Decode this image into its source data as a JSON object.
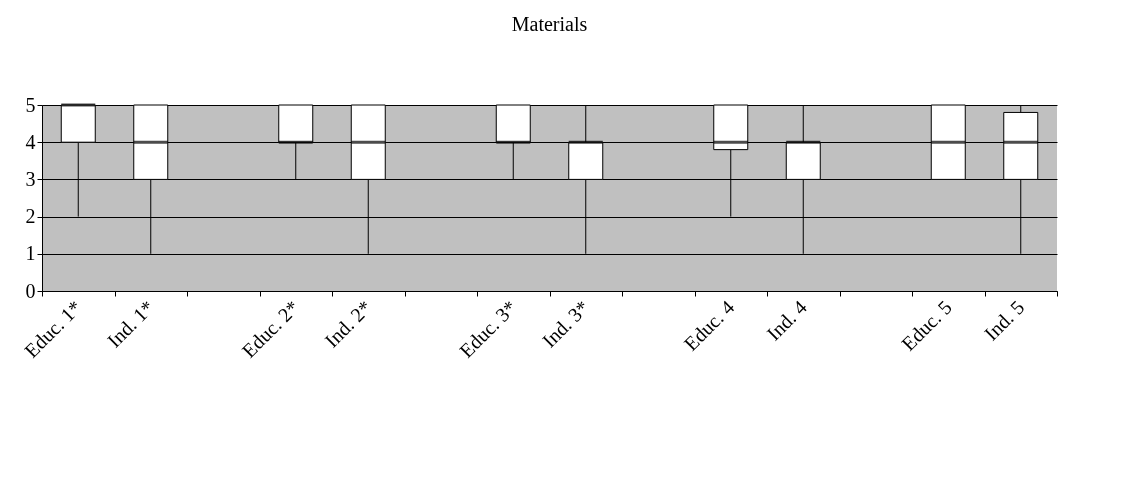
{
  "chart_data": {
    "type": "box",
    "title": "Materials",
    "categories": [
      "Educ. 1*",
      "Ind. 1*",
      null,
      "Educ. 2*",
      "Ind. 2*",
      null,
      "Educ. 3*",
      "Ind. 3*",
      null,
      "Educ. 4",
      "Ind. 4",
      null,
      "Educ. 5",
      "Ind. 5"
    ],
    "boxes": [
      {
        "low": 2,
        "q1": 4,
        "median": 5,
        "q3": 5,
        "high": 5
      },
      {
        "low": 1,
        "q1": 3,
        "median": 4,
        "q3": 5,
        "high": 5
      },
      null,
      {
        "low": 3,
        "q1": 4,
        "median": 4,
        "q3": 5,
        "high": 5
      },
      {
        "low": 1,
        "q1": 3,
        "median": 4,
        "q3": 5,
        "high": 5
      },
      null,
      {
        "low": 3,
        "q1": 4,
        "median": 4,
        "q3": 5,
        "high": 5
      },
      {
        "low": 1,
        "q1": 3,
        "median": 4,
        "q3": 4,
        "high": 5
      },
      null,
      {
        "low": 2,
        "q1": 3.8,
        "median": 4,
        "q3": 5,
        "high": 5
      },
      {
        "low": 1,
        "q1": 3,
        "median": 4,
        "q3": 4,
        "high": 5
      },
      null,
      {
        "low": 3,
        "q1": 3,
        "median": 4,
        "q3": 5,
        "high": 5
      },
      {
        "low": 1,
        "q1": 3,
        "median": 4,
        "q3": 4.8,
        "high": 5
      }
    ],
    "ylim": [
      0,
      5
    ],
    "yticks": [
      0,
      1,
      2,
      3,
      4,
      5
    ],
    "grid": "y"
  }
}
